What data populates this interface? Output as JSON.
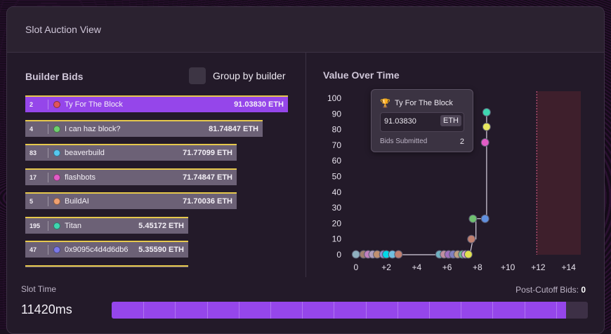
{
  "header": {
    "title": "Slot Auction View"
  },
  "builder_bids": {
    "title": "Builder Bids",
    "group_label": "Group by builder",
    "group_checked": false,
    "rows": [
      {
        "count": "2",
        "name": "Ty For The Block",
        "value": "91.03830 ETH",
        "color": "#e0545c",
        "highlight": true,
        "fraction": 1.0
      },
      {
        "count": "4",
        "name": "I can haz block?",
        "value": "81.74847 ETH",
        "color": "#6fcf6f",
        "highlight": false,
        "fraction": 0.8974
      },
      {
        "count": "83",
        "name": "beaverbuild",
        "value": "71.77099 ETH",
        "color": "#56c7ee",
        "highlight": false,
        "fraction": 0.7923
      },
      {
        "count": "17",
        "name": "flashbots",
        "value": "71.74847 ETH",
        "color": "#e25cc6",
        "highlight": false,
        "fraction": 0.7923
      },
      {
        "count": "5",
        "name": "BuildAI",
        "value": "71.70036 ETH",
        "color": "#f0a070",
        "highlight": false,
        "fraction": 0.7923
      },
      {
        "count": "195",
        "name": "Titan",
        "value": "5.45172 ETH",
        "color": "#3fd6b0",
        "highlight": false,
        "fraction": 0.5949
      },
      {
        "count": "47",
        "name": "0x9095c4d4d6db6",
        "value": "5.35590 ETH",
        "color": "#7b78e8",
        "highlight": false,
        "fraction": 0.5949
      },
      {
        "count": "",
        "name": "",
        "value": "",
        "color": "#9aa",
        "highlight": false,
        "fraction": 0.5949
      }
    ]
  },
  "value_over_time": {
    "title": "Value Over Time",
    "tooltip": {
      "icon": "trophy-icon",
      "name": "Ty For The Block",
      "value": "91.03830",
      "unit": "ETH",
      "bids_label": "Bids Submitted",
      "bids_value": "2"
    }
  },
  "chart_data": {
    "type": "scatter",
    "xlim": [
      -0.5,
      14.8
    ],
    "ylim": [
      0,
      100
    ],
    "x_ticks": [
      "0",
      "+2",
      "+4",
      "+6",
      "+8",
      "+10",
      "+12",
      "+14"
    ],
    "x_tick_values": [
      0,
      2,
      4,
      6,
      8,
      10,
      12,
      14
    ],
    "y_ticks": [
      "0",
      "10",
      "20",
      "30",
      "40",
      "50",
      "60",
      "70",
      "80",
      "90",
      "100"
    ],
    "y_tick_values": [
      0,
      10,
      20,
      30,
      40,
      50,
      60,
      70,
      80,
      90,
      100
    ],
    "cutoff_x": 11.9,
    "line_points": [
      [
        0,
        0
      ],
      [
        1.0,
        0
      ],
      [
        2.0,
        0
      ],
      [
        3.0,
        0
      ],
      [
        5.5,
        0
      ],
      [
        6.8,
        0
      ],
      [
        7.5,
        0
      ],
      [
        7.7,
        10
      ],
      [
        7.9,
        10
      ],
      [
        7.9,
        23
      ],
      [
        8.6,
        23
      ],
      [
        8.6,
        91.04
      ]
    ],
    "points": [
      {
        "x": 0.0,
        "y": 0.2,
        "color": "#8fb0c0"
      },
      {
        "x": 0.5,
        "y": 0.2,
        "color": "#a08070"
      },
      {
        "x": 0.8,
        "y": 0.2,
        "color": "#c080c0"
      },
      {
        "x": 1.1,
        "y": 0.2,
        "color": "#b0a0c0"
      },
      {
        "x": 1.4,
        "y": 0.2,
        "color": "#c09070"
      },
      {
        "x": 1.8,
        "y": 0.2,
        "color": "#9090d0"
      },
      {
        "x": 2.0,
        "y": 0.2,
        "color": "#00d8e8"
      },
      {
        "x": 2.4,
        "y": 0.2,
        "color": "#70c0e0"
      },
      {
        "x": 2.8,
        "y": 0.2,
        "color": "#c08070"
      },
      {
        "x": 5.5,
        "y": 0.2,
        "color": "#70b0c0"
      },
      {
        "x": 5.8,
        "y": 0.2,
        "color": "#c090a0"
      },
      {
        "x": 6.1,
        "y": 0.2,
        "color": "#a070c0"
      },
      {
        "x": 6.4,
        "y": 0.2,
        "color": "#8080c0"
      },
      {
        "x": 6.7,
        "y": 0.2,
        "color": "#c0a080"
      },
      {
        "x": 7.0,
        "y": 0.2,
        "color": "#70c090"
      },
      {
        "x": 7.2,
        "y": 0.2,
        "color": "#d0a0d0"
      },
      {
        "x": 7.4,
        "y": 0.2,
        "color": "#e0e050"
      },
      {
        "x": 7.6,
        "y": 10.0,
        "color": "#c08070"
      },
      {
        "x": 7.7,
        "y": 23.0,
        "color": "#70c070"
      },
      {
        "x": 8.5,
        "y": 23.0,
        "color": "#6090e0"
      },
      {
        "x": 8.5,
        "y": 71.74,
        "color": "#e25cc6"
      },
      {
        "x": 8.6,
        "y": 81.75,
        "color": "#e8e860"
      },
      {
        "x": 8.6,
        "y": 91.04,
        "color": "#3fd6b0"
      }
    ]
  },
  "slot_time": {
    "label": "Slot Time",
    "value": "11420ms",
    "progress": 0.955,
    "segments": 15
  },
  "post_cutoff": {
    "label": "Post-Cutoff Bids:",
    "count": "0"
  }
}
